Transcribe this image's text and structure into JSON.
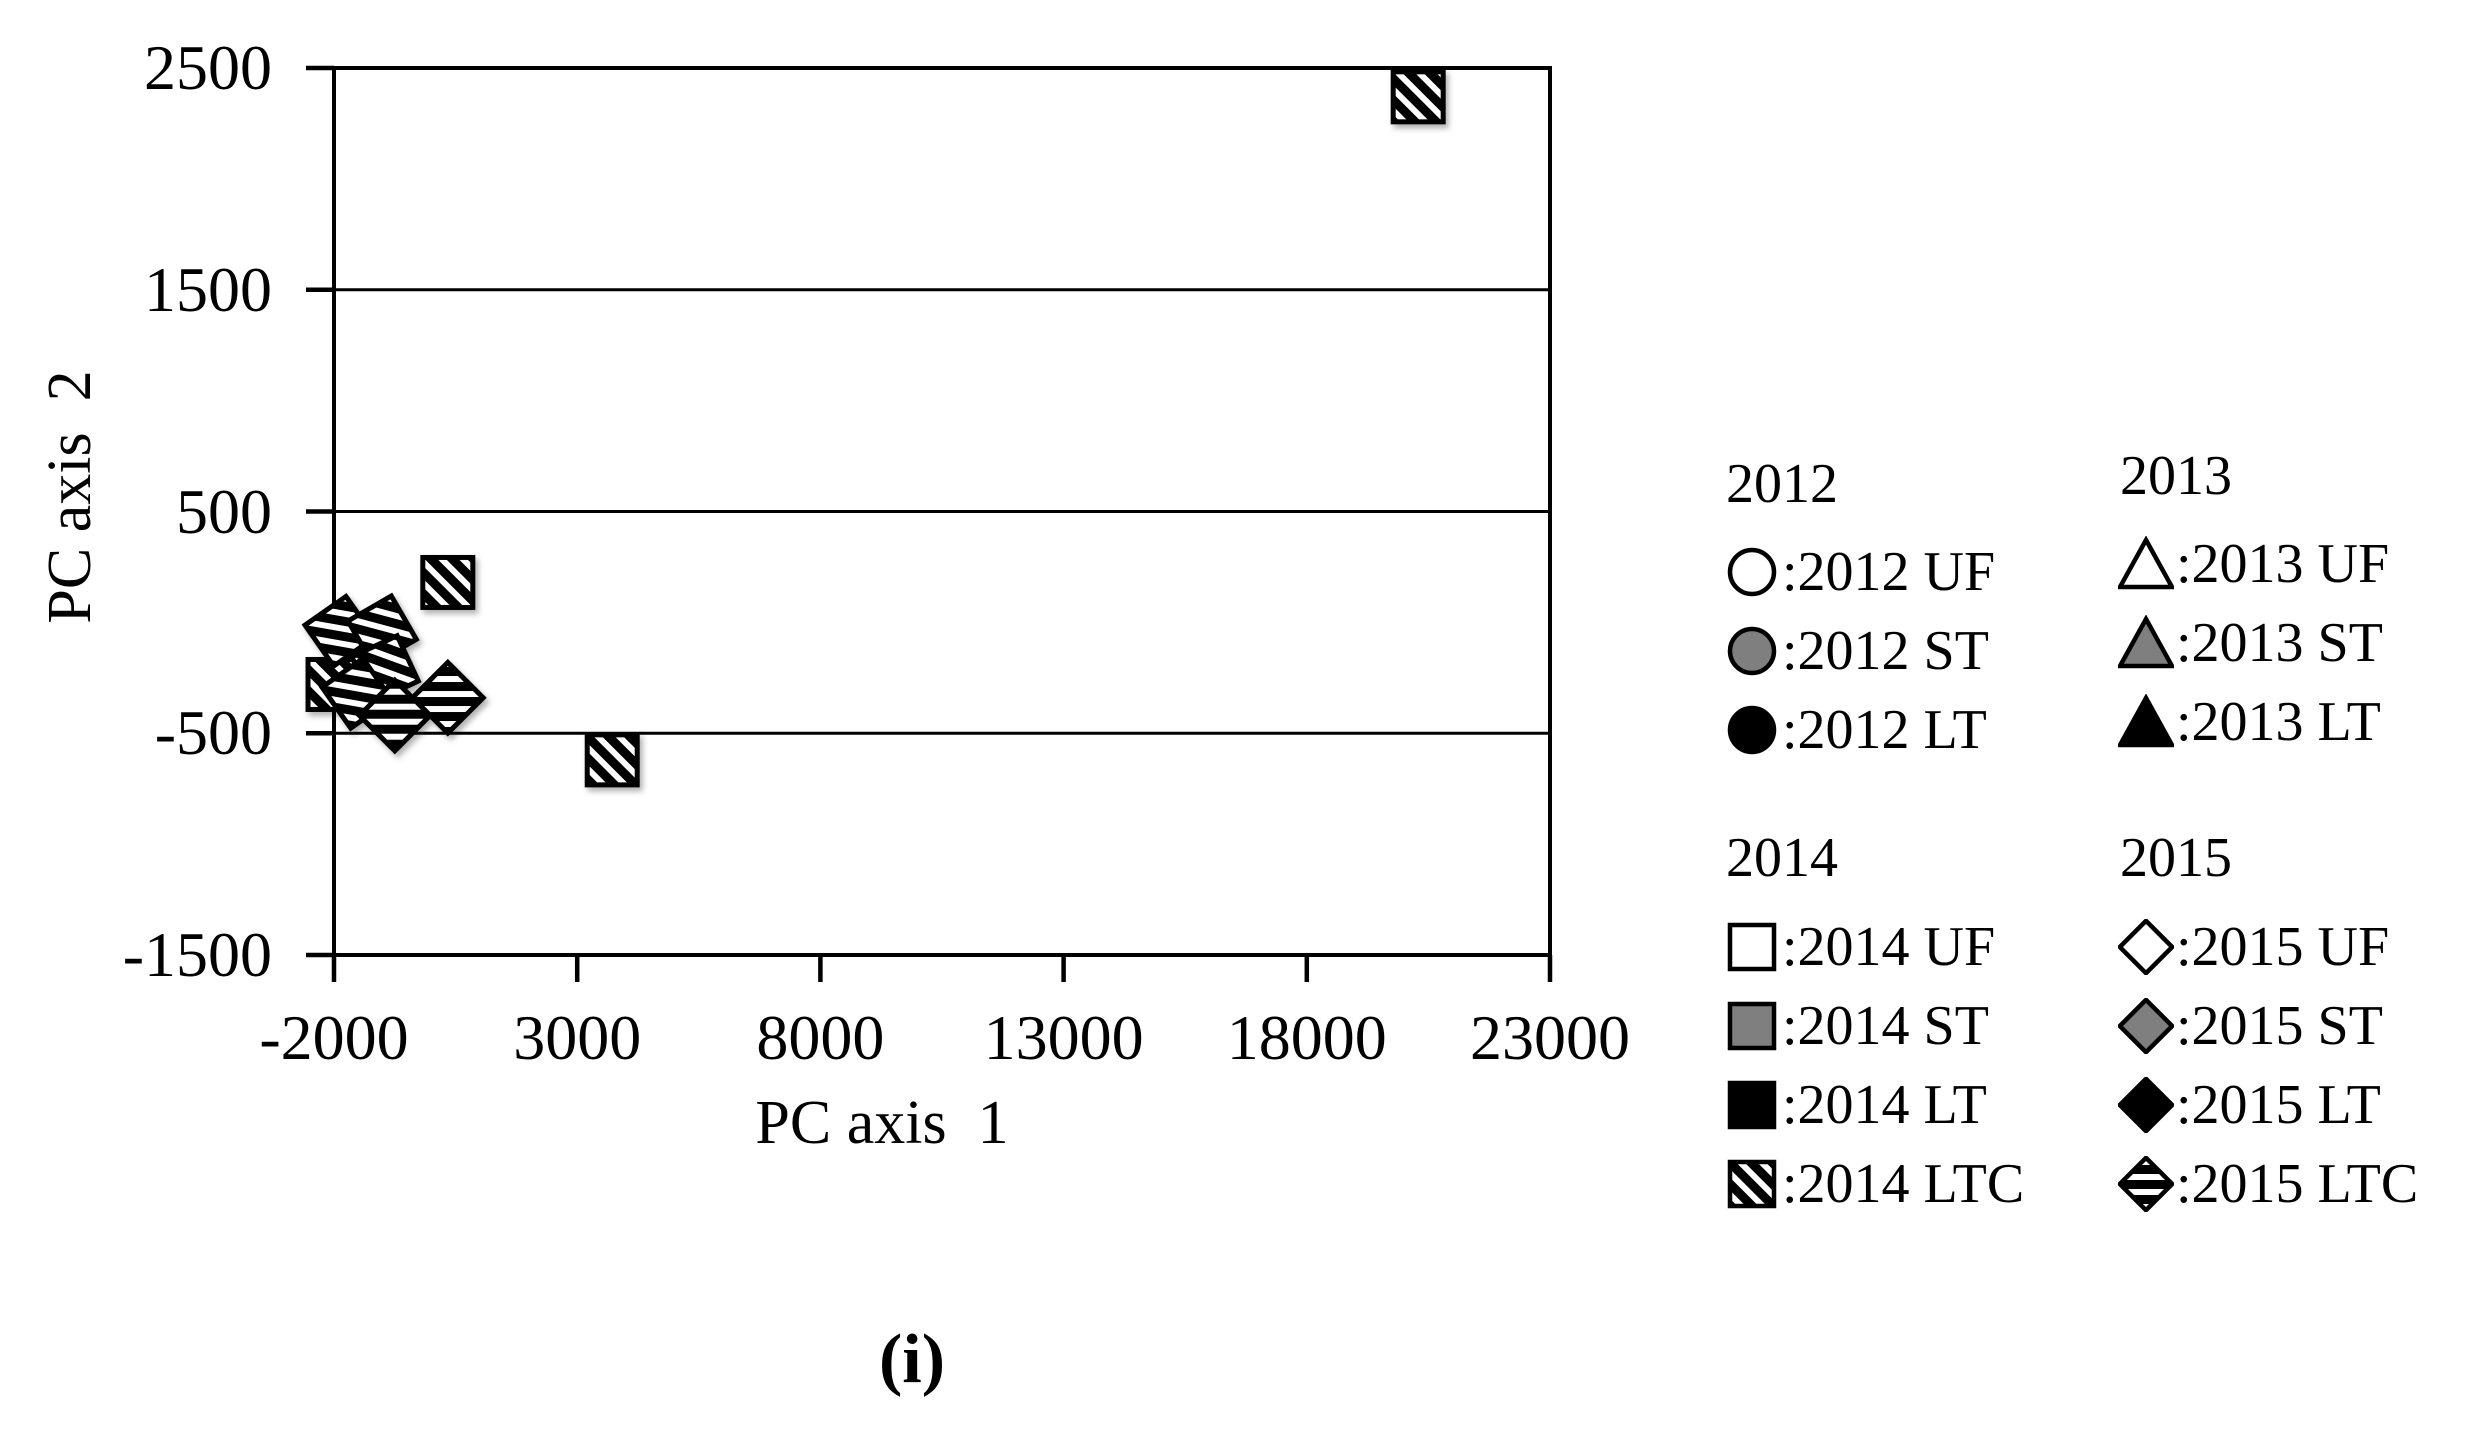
{
  "figure": {
    "caption": "(i)"
  },
  "chart_data": {
    "type": "scatter",
    "title": "",
    "xlabel": "PC axis  1",
    "ylabel": "PC axis  2",
    "xlim": [
      -2000,
      23000
    ],
    "ylim": [
      -1500,
      2500
    ],
    "x_ticks": [
      -2000,
      3000,
      8000,
      13000,
      18000,
      23000
    ],
    "y_ticks": [
      2500,
      1500,
      500,
      -500,
      -1500
    ],
    "grid": "horizontal-only",
    "legend_position": "right-outside",
    "series": [
      {
        "name": "2014 LTC",
        "marker": "hatched-square",
        "points": [
          {
            "x": 20290,
            "y": 2370
          },
          {
            "x": 340,
            "y": 180
          },
          {
            "x": 3720,
            "y": -620
          },
          {
            "x": -2020,
            "y": -280
          }
        ]
      },
      {
        "name": "2015 LTC",
        "marker": "hatched-diamond",
        "points": [
          {
            "x": -1880,
            "y": -40,
            "tilt": 35
          },
          {
            "x": -1010,
            "y": -35,
            "tilt": 30
          },
          {
            "x": -950,
            "y": -210,
            "tilt": 25
          },
          {
            "x": -1530,
            "y": -320,
            "tilt": 35
          },
          {
            "x": 340,
            "y": -340,
            "tilt": 45
          },
          {
            "x": -750,
            "y": -420,
            "tilt": 45
          }
        ]
      }
    ]
  },
  "legend": {
    "groups": [
      {
        "header": "2012",
        "marker_shape": "circle",
        "items": [
          {
            "text": ":2012 UF",
            "fill": "white"
          },
          {
            "text": ":2012 ST",
            "fill": "gray"
          },
          {
            "text": ":2012 LT",
            "fill": "black"
          }
        ]
      },
      {
        "header": "2013",
        "marker_shape": "triangle",
        "items": [
          {
            "text": ":2013 UF",
            "fill": "white"
          },
          {
            "text": ":2013 ST",
            "fill": "gray"
          },
          {
            "text": ":2013 LT",
            "fill": "black"
          }
        ]
      },
      {
        "header": "2014",
        "marker_shape": "square",
        "items": [
          {
            "text": ":2014 UF",
            "fill": "white"
          },
          {
            "text": ":2014 ST",
            "fill": "gray"
          },
          {
            "text": ":2014 LT",
            "fill": "black"
          },
          {
            "text": ":2014 LTC",
            "fill": "hatch"
          }
        ]
      },
      {
        "header": "2015",
        "marker_shape": "diamond",
        "items": [
          {
            "text": ":2015 UF",
            "fill": "white"
          },
          {
            "text": ":2015 ST",
            "fill": "gray"
          },
          {
            "text": ":2015 LT",
            "fill": "black"
          },
          {
            "text": ":2015 LTC",
            "fill": "hatch"
          }
        ]
      }
    ]
  },
  "colors": {
    "black": "#000000",
    "white": "#ffffff",
    "gray_fill": "#7f7f7f"
  }
}
